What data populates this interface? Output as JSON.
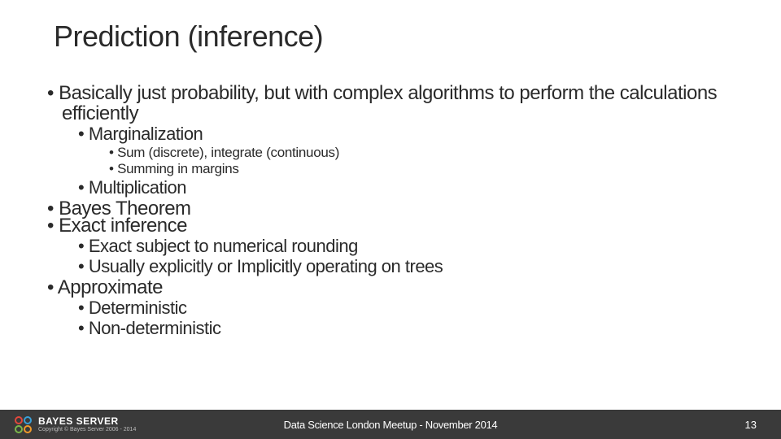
{
  "theme": {
    "background": "#ffffff",
    "text_color": "#2a2a2a",
    "footer_bg": "#3a3a3a",
    "footer_text": "#ffffff",
    "title_fontsize": 36,
    "b1_fontsize": 24,
    "b2_fontsize": 22,
    "b3_fontsize": 17
  },
  "title": "Prediction (inference)",
  "bullets": {
    "l1a": "Basically just probability, but with complex algorithms to perform the calculations efficiently",
    "l2a": "Marginalization",
    "l3a": "Sum (discrete), integrate (continuous)",
    "l3b": "Summing in margins",
    "l2b": "Multiplication",
    "l1b": "Bayes Theorem",
    "l1c": "Exact inference",
    "l2c": "Exact subject to numerical rounding",
    "l2d": "Usually explicitly or Implicitly operating on trees",
    "l1d": "Approximate",
    "l2e": "Deterministic",
    "l2f": "Non-deterministic"
  },
  "footer": {
    "brand": "BAYES SERVER",
    "copyright": "Copyright © Bayes Server 2006 - 2014",
    "center": "Data Science London Meetup - November 2014",
    "page": "13",
    "logo_colors": {
      "tl": "#e2483c",
      "tr": "#3aa0d8",
      "bl": "#7bb84a",
      "br": "#f09a2a"
    }
  }
}
